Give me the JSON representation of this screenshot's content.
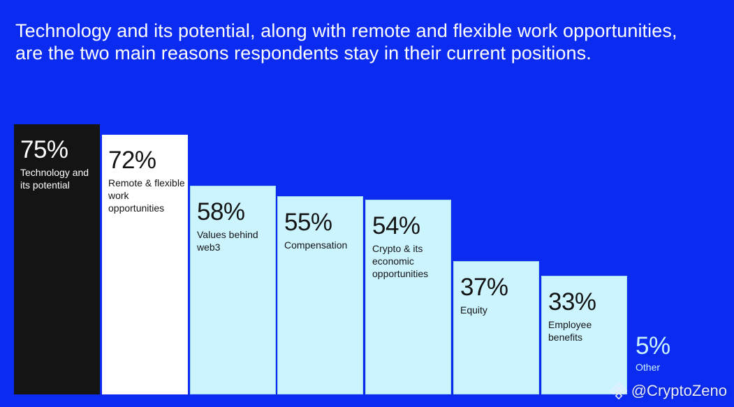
{
  "title": "Technology and its potential, along with remote and flexible work opportunities, are the two main reasons respondents stay in their current positions.",
  "watermark": "@CryptoZeno",
  "colors": {
    "background": "#0b2cf0",
    "highlight_primary": "#141414",
    "highlight_secondary": "#ffffff",
    "bar_default": "#ccf4ff",
    "text_dark": "#141414",
    "text_light": "#ffffff"
  },
  "chart_data": {
    "type": "bar",
    "title": "Technology and its potential, along with remote and flexible work opportunities, are the two main reasons respondents stay in their current positions.",
    "categories": [
      "Technology and its potential",
      "Remote & flexible work opportunities",
      "Values behind web3",
      "Compensation",
      "Crypto & its economic opportunities",
      "Equity",
      "Employee benefits",
      "Other"
    ],
    "values": [
      75,
      72,
      58,
      55,
      54,
      37,
      33,
      5
    ],
    "value_labels": [
      "75%",
      "72%",
      "58%",
      "55%",
      "54%",
      "37%",
      "33%",
      "5%"
    ],
    "unit": "%",
    "ylim": [
      0,
      75
    ],
    "grid": false,
    "legend": "none",
    "xlabel": "",
    "ylabel": ""
  }
}
